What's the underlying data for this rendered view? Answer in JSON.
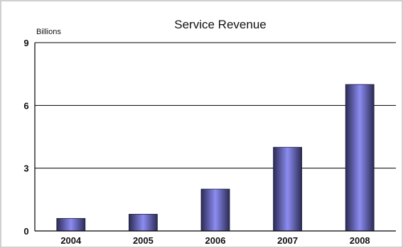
{
  "chart_data": {
    "type": "bar",
    "title": "Service Revenue",
    "ylabel": "Billions",
    "xlabel": "",
    "categories": [
      "2004",
      "2005",
      "2006",
      "2007",
      "2008"
    ],
    "values": [
      0.6,
      0.8,
      2.0,
      4.0,
      7.0
    ],
    "ylim": [
      0,
      9
    ],
    "yticks": [
      0,
      3,
      6,
      9
    ],
    "grid": true,
    "legend": "none",
    "colors": {
      "bar_center": "#8c8cf2",
      "bar_edge": "#2b2b55",
      "gridline": "#000000",
      "axis": "#000000"
    }
  }
}
